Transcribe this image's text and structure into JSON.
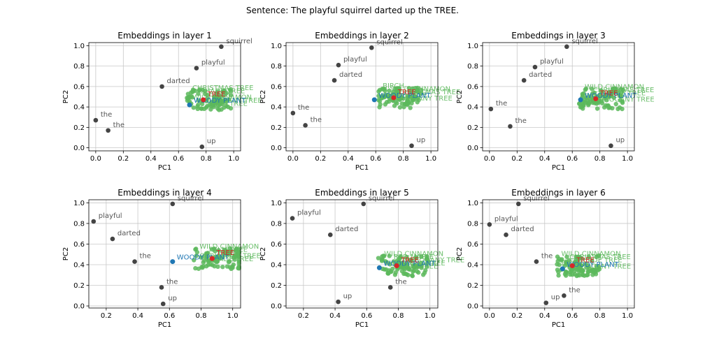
{
  "figure": {
    "title": "Sentence: The playful squirrel darted up the TREE."
  },
  "colors": {
    "token": "#444444",
    "token_label": "#555555",
    "target": "#d62728",
    "target_label": "#d62728",
    "synonym": "#1f77b4",
    "synonym_label": "#1f77b4",
    "related": "#5cb85c",
    "related_label": "#5cb85c",
    "grid": "#c8c8c8"
  },
  "chart_data": [
    {
      "type": "scatter",
      "title": "Embeddings in layer 1",
      "xlabel": "PC1",
      "ylabel": "PC2",
      "xlim": [
        -0.05,
        1.05
      ],
      "ylim": [
        -0.03,
        1.03
      ],
      "xticks": [
        0.0,
        0.2,
        0.4,
        0.6,
        0.8,
        1.0
      ],
      "yticks": [
        0.0,
        0.2,
        0.4,
        0.6,
        0.8,
        1.0
      ],
      "grid": true,
      "tokens": [
        {
          "label": "the",
          "x": 0.0,
          "y": 0.27
        },
        {
          "label": "the",
          "x": 0.09,
          "y": 0.17
        },
        {
          "label": "darted",
          "x": 0.48,
          "y": 0.6
        },
        {
          "label": "playful",
          "x": 0.73,
          "y": 0.78
        },
        {
          "label": "squirrel",
          "x": 0.91,
          "y": 0.99
        },
        {
          "label": "up",
          "x": 0.77,
          "y": 0.01
        }
      ],
      "target": {
        "label": "TREE",
        "x": 0.78,
        "y": 0.47
      },
      "synonym": {
        "label": "WOODY PLANT",
        "x": 0.68,
        "y": 0.42
      },
      "related_labels": [
        "CHRISTMAS TREE",
        "SHADE TREE",
        "BIRCH",
        "WILD CINNAMON",
        "MAHOGANY TREE",
        "PALM TREE"
      ]
    },
    {
      "type": "scatter",
      "title": "Embeddings in layer 2",
      "xlabel": "PC1",
      "ylabel": "PC2",
      "xlim": [
        -0.05,
        1.05
      ],
      "ylim": [
        -0.03,
        1.03
      ],
      "xticks": [
        0.0,
        0.2,
        0.4,
        0.6,
        0.8,
        1.0
      ],
      "yticks": [
        0.0,
        0.2,
        0.4,
        0.6,
        0.8,
        1.0
      ],
      "grid": true,
      "tokens": [
        {
          "label": "the",
          "x": 0.0,
          "y": 0.34
        },
        {
          "label": "the",
          "x": 0.09,
          "y": 0.22
        },
        {
          "label": "darted",
          "x": 0.3,
          "y": 0.66
        },
        {
          "label": "playful",
          "x": 0.33,
          "y": 0.81
        },
        {
          "label": "squirrel",
          "x": 0.57,
          "y": 0.98
        },
        {
          "label": "up",
          "x": 0.86,
          "y": 0.02
        }
      ],
      "target": {
        "label": "TREE",
        "x": 0.73,
        "y": 0.49
      },
      "synonym": {
        "label": "WOODY PLANT",
        "x": 0.59,
        "y": 0.47
      },
      "related_labels": [
        "BIRCH",
        "WILD CINNAMON",
        "CHRISTMAS TREE",
        "SHADE TREE",
        "MAHOGANY TREE"
      ]
    },
    {
      "type": "scatter",
      "title": "Embeddings in layer 3",
      "xlabel": "PC1",
      "ylabel": "PC2",
      "xlim": [
        -0.05,
        1.05
      ],
      "ylim": [
        -0.03,
        1.03
      ],
      "xticks": [
        0.0,
        0.2,
        0.4,
        0.6,
        0.8,
        1.0
      ],
      "yticks": [
        0.0,
        0.2,
        0.4,
        0.6,
        0.8,
        1.0
      ],
      "grid": true,
      "tokens": [
        {
          "label": "the",
          "x": 0.01,
          "y": 0.38
        },
        {
          "label": "the",
          "x": 0.15,
          "y": 0.21
        },
        {
          "label": "darted",
          "x": 0.25,
          "y": 0.66
        },
        {
          "label": "playful",
          "x": 0.33,
          "y": 0.79
        },
        {
          "label": "squirrel",
          "x": 0.56,
          "y": 0.99
        },
        {
          "label": "up",
          "x": 0.88,
          "y": 0.02
        }
      ],
      "target": {
        "label": "TREE",
        "x": 0.77,
        "y": 0.48
      },
      "synonym": {
        "label": "WOODY PLANT",
        "x": 0.66,
        "y": 0.47
      },
      "related_labels": [
        "WILD CINNAMON",
        "CHRISTMAS TREE",
        "SHADE TREE",
        "BIRCH",
        "MAHOGANY TREE"
      ]
    },
    {
      "type": "scatter",
      "title": "Embeddings in layer 4",
      "xlabel": "PC1",
      "ylabel": "PC2",
      "xlim": [
        0.09,
        1.05
      ],
      "ylim": [
        -0.02,
        1.03
      ],
      "xticks": [
        0.2,
        0.4,
        0.6,
        0.8,
        1.0
      ],
      "yticks": [
        0.0,
        0.2,
        0.4,
        0.6,
        0.8,
        1.0
      ],
      "grid": true,
      "tokens": [
        {
          "label": "playful",
          "x": 0.12,
          "y": 0.82
        },
        {
          "label": "darted",
          "x": 0.24,
          "y": 0.65
        },
        {
          "label": "squirrel",
          "x": 0.62,
          "y": 0.99
        },
        {
          "label": "the",
          "x": 0.38,
          "y": 0.43
        },
        {
          "label": "the",
          "x": 0.55,
          "y": 0.18
        },
        {
          "label": "up",
          "x": 0.56,
          "y": 0.02
        }
      ],
      "target": {
        "label": "TREE",
        "x": 0.87,
        "y": 0.46
      },
      "synonym": {
        "label": "WOODY PLANT",
        "x": 0.62,
        "y": 0.43
      },
      "related_labels": [
        "WILD CINNAMON",
        "PALM TREE",
        "BIRCH",
        "CHRISTMAS TREE",
        "SHADE TREE"
      ]
    },
    {
      "type": "scatter",
      "title": "Embeddings in layer 5",
      "xlabel": "PC1",
      "ylabel": "PC2",
      "xlim": [
        0.09,
        1.05
      ],
      "ylim": [
        -0.02,
        1.03
      ],
      "xticks": [
        0.2,
        0.4,
        0.6,
        0.8,
        1.0
      ],
      "yticks": [
        0.0,
        0.2,
        0.4,
        0.6,
        0.8,
        1.0
      ],
      "grid": true,
      "tokens": [
        {
          "label": "playful",
          "x": 0.13,
          "y": 0.85
        },
        {
          "label": "squirrel",
          "x": 0.58,
          "y": 0.99
        },
        {
          "label": "darted",
          "x": 0.37,
          "y": 0.69
        },
        {
          "label": "the",
          "x": 0.75,
          "y": 0.18
        },
        {
          "label": "up",
          "x": 0.42,
          "y": 0.04
        }
      ],
      "target": {
        "label": "TREE",
        "x": 0.79,
        "y": 0.39
      },
      "synonym": {
        "label": "WOODY PLANT",
        "x": 0.68,
        "y": 0.37
      },
      "related_labels": [
        "WILD CINNAMON",
        "RED MAPLE",
        "MAHOGANY TREE",
        "CHRISTMAS TREE",
        "SHADE TREE"
      ]
    },
    {
      "type": "scatter",
      "title": "Embeddings in layer 6",
      "xlabel": "PC1",
      "ylabel": "PC2",
      "xlim": [
        -0.05,
        1.05
      ],
      "ylim": [
        -0.02,
        1.03
      ],
      "xticks": [
        0.0,
        0.2,
        0.4,
        0.6,
        0.8,
        1.0
      ],
      "yticks": [
        0.0,
        0.2,
        0.4,
        0.6,
        0.8,
        1.0
      ],
      "grid": true,
      "tokens": [
        {
          "label": "playful",
          "x": 0.0,
          "y": 0.79
        },
        {
          "label": "squirrel",
          "x": 0.21,
          "y": 0.99
        },
        {
          "label": "darted",
          "x": 0.12,
          "y": 0.69
        },
        {
          "label": "the",
          "x": 0.34,
          "y": 0.43
        },
        {
          "label": "the",
          "x": 0.54,
          "y": 0.1
        },
        {
          "label": "up",
          "x": 0.41,
          "y": 0.03
        }
      ],
      "target": {
        "label": "TREE",
        "x": 0.6,
        "y": 0.39
      },
      "synonym": {
        "label": "WOODY PLANT",
        "x": 0.53,
        "y": 0.36
      },
      "related_labels": [
        "WILD CINNAMON",
        "CHRISTMAS TREE",
        "SHADE TREE",
        "BIRCH",
        "MAHOGANY TREE"
      ]
    }
  ]
}
